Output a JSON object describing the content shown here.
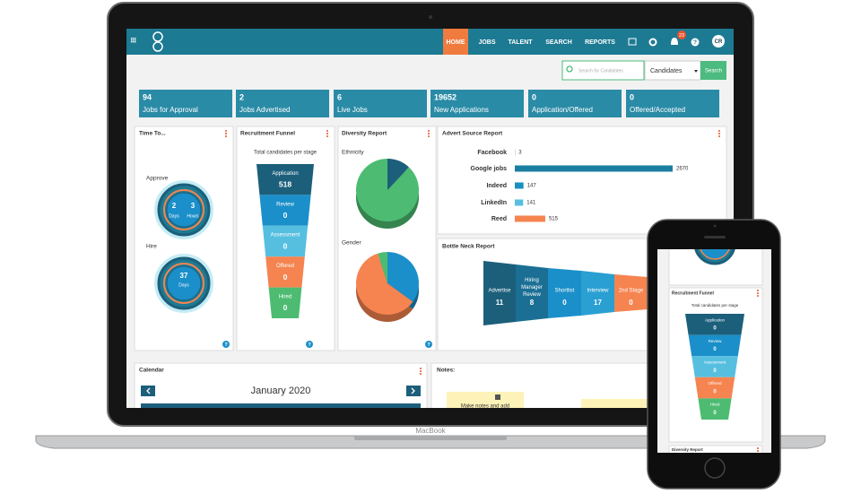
{
  "nav": {
    "items": [
      "HOME",
      "JOBS",
      "TALENT",
      "SEARCH",
      "REPORTS"
    ],
    "badge": "23",
    "help": "?",
    "avatar": "CR"
  },
  "search": {
    "placeholder": "Search for Candidates",
    "select": "Candidates",
    "button": "Search"
  },
  "kpis": [
    {
      "value": "94",
      "label": "Jobs for Approval"
    },
    {
      "value": "2",
      "label": "Jobs Advertised"
    },
    {
      "value": "6",
      "label": "Live Jobs"
    },
    {
      "value": "19652",
      "label": "New Applications"
    },
    {
      "value": "0",
      "label": "Application/Offered"
    },
    {
      "value": "0",
      "label": "Offered/Accepted"
    }
  ],
  "time_to": {
    "title": "Time To...",
    "approve": "Approve",
    "approve_days": "2",
    "days_label": "Days",
    "approve_hours": "3",
    "hours_label": "Hours",
    "hire": "Hire",
    "hire_days": "37",
    "hire_days_label": "Days",
    "help": "?"
  },
  "funnel": {
    "title": "Recruitment Funnel",
    "subtitle": "Total candidates per stage",
    "help": "?",
    "stages": [
      {
        "name": "Application",
        "value": 518,
        "color": "#1c5f7b"
      },
      {
        "name": "Review",
        "value": 0,
        "color": "#1b8fc9"
      },
      {
        "name": "Assessment",
        "value": 0,
        "color": "#56bfe0"
      },
      {
        "name": "Offered",
        "value": 0,
        "color": "#f58450"
      },
      {
        "name": "Hired",
        "value": 0,
        "color": "#4dbc72"
      }
    ]
  },
  "diversity": {
    "title": "Diversity Report",
    "help": "?",
    "ethnicity": {
      "label": "Ethnicity",
      "shares": [
        12,
        88
      ],
      "colors": [
        "#1c5f7b",
        "#4dbc72"
      ]
    },
    "gender": {
      "label": "Gender",
      "shares": [
        35,
        60,
        5
      ],
      "colors": [
        "#1b8fc9",
        "#f58450",
        "#4dbc72"
      ]
    }
  },
  "advert": {
    "title": "Advert Source Report",
    "sources": [
      {
        "name": "Facebook",
        "value": 3,
        "color": "#1c5f7b"
      },
      {
        "name": "Google jobs",
        "value": 2670,
        "color": "#1a7fa0"
      },
      {
        "name": "Indeed",
        "value": 147,
        "color": "#1a8fc0"
      },
      {
        "name": "LinkedIn",
        "value": 141,
        "color": "#56bfe0"
      },
      {
        "name": "Reed",
        "value": 515,
        "color": "#f58450"
      }
    ]
  },
  "bottleneck": {
    "title": "Bottle Neck Report",
    "stages": [
      {
        "name": "Advertise",
        "value": 11,
        "color": "#1c5f7b"
      },
      {
        "name": "Hiring Manager Review",
        "value": 8,
        "color": "#1b6f95"
      },
      {
        "name": "Shortlist",
        "value": 0,
        "color": "#1b8fc9"
      },
      {
        "name": "Interview",
        "value": 17,
        "color": "#2a9fd2"
      },
      {
        "name": "2nd Stage",
        "value": 0,
        "color": "#f58450"
      }
    ]
  },
  "calendar": {
    "title": "Calendar",
    "month": "January 2020"
  },
  "notes": {
    "title": "Notes:",
    "hint": "Make notes and add"
  },
  "device": "MacBook",
  "phone": {
    "funnel_title": "Recruitment Funnel",
    "subtitle": "Total candidates per stage",
    "stages": [
      {
        "name": "Application",
        "value": 0
      },
      {
        "name": "Review",
        "value": 0
      },
      {
        "name": "Assessment",
        "value": 0
      },
      {
        "name": "Offered",
        "value": 0
      },
      {
        "name": "Hired",
        "value": 0
      }
    ],
    "next": "Diversity Report"
  }
}
